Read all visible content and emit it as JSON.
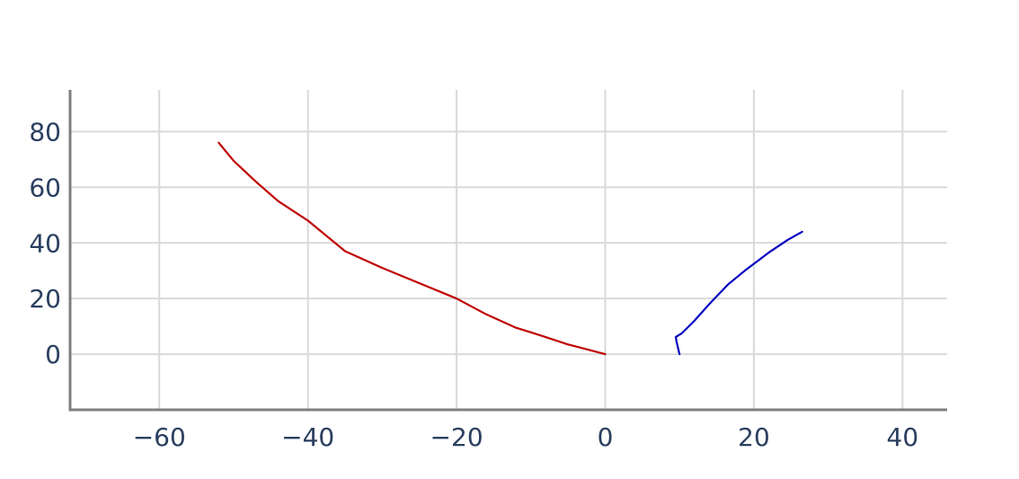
{
  "chart_data": {
    "type": "line",
    "title": "",
    "xlabel": "",
    "ylabel": "",
    "xlim": [
      -72,
      46
    ],
    "ylim": [
      -20,
      95
    ],
    "x_ticks": [
      -60,
      -40,
      -20,
      0,
      20,
      40
    ],
    "x_tick_labels": [
      "−60",
      "−40",
      "−20",
      "0",
      "20",
      "40"
    ],
    "y_ticks": [
      0,
      20,
      40,
      60,
      80
    ],
    "y_tick_labels": [
      "0",
      "20",
      "40",
      "60",
      "80"
    ],
    "grid": true,
    "legend": "none",
    "series": [
      {
        "color": "#c00000",
        "x": [
          0,
          -5,
          -9,
          -12,
          -16,
          -20,
          -25,
          -30,
          -35,
          -40,
          -44,
          -47,
          -50,
          -52
        ],
        "y": [
          0,
          3.5,
          7,
          9.5,
          14.3,
          20,
          25.5,
          31,
          37,
          48,
          55,
          62,
          69.5,
          76
        ]
      },
      {
        "color": "#0000c0",
        "x": [
          10,
          9.6,
          9.5,
          10.3,
          12,
          14,
          16.5,
          19,
          22,
          24.5,
          26.5
        ],
        "y": [
          0,
          4.5,
          6.2,
          7.5,
          12,
          18,
          25,
          30.5,
          36.5,
          41,
          44
        ]
      }
    ]
  }
}
